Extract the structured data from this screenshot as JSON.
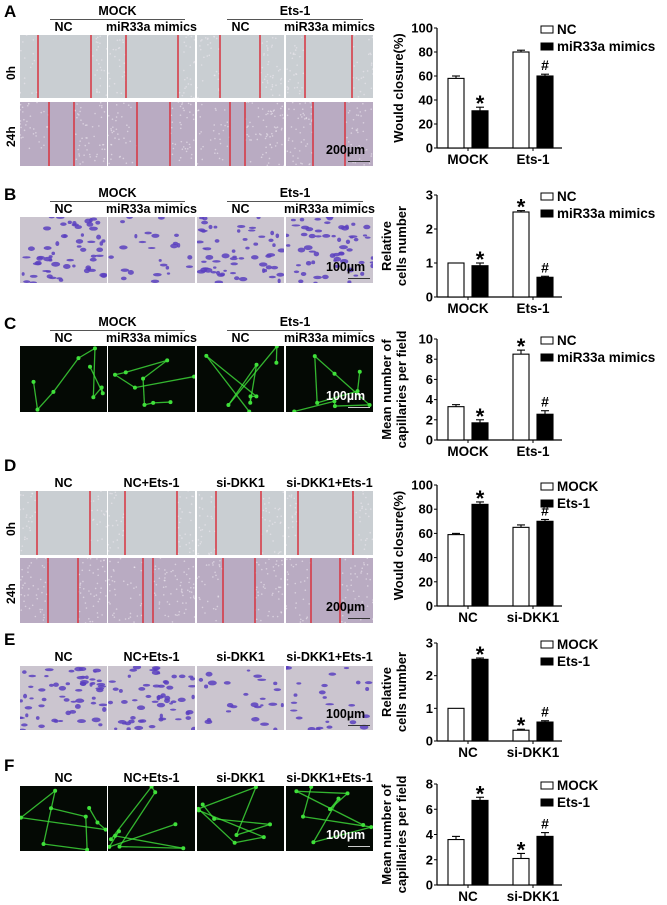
{
  "panels": [
    {
      "letter": "A",
      "groups": [
        "MOCK",
        "Ets-1"
      ],
      "columns": [
        "NC",
        "miR33a mimics",
        "NC",
        "miR33a mimics"
      ],
      "rows": [
        "0h",
        "24h"
      ],
      "scale": "200µm"
    },
    {
      "letter": "B",
      "groups": [
        "MOCK",
        "Ets-1"
      ],
      "columns": [
        "NC",
        "miR33a mimics",
        "NC",
        "miR33a mimics"
      ],
      "rows": [],
      "scale": "100µm"
    },
    {
      "letter": "C",
      "groups": [
        "MOCK",
        "Ets-1"
      ],
      "columns": [
        "NC",
        "miR33a mimics",
        "NC",
        "miR33a mimics"
      ],
      "rows": [],
      "scale": "100µm"
    },
    {
      "letter": "D",
      "groups": [],
      "columns": [
        "NC",
        "NC+Ets-1",
        "si-DKK1",
        "si-DKK1+Ets-1"
      ],
      "rows": [
        "0h",
        "24h"
      ],
      "scale": "200µm"
    },
    {
      "letter": "E",
      "groups": [],
      "columns": [
        "NC",
        "NC+Ets-1",
        "si-DKK1",
        "si-DKK1+Ets-1"
      ],
      "rows": [],
      "scale": "100µm"
    },
    {
      "letter": "F",
      "groups": [],
      "columns": [
        "NC",
        "NC+Ets-1",
        "si-DKK1",
        "si-DKK1+Ets-1"
      ],
      "rows": [],
      "scale": "100µm"
    }
  ],
  "colors": {
    "scratch_0h": "#c9ced2",
    "scratch_24h": "#b9abc2",
    "scratch_line": "#d8333f",
    "transwell_bg": "#cbc5cf",
    "transwell_cells": "#5b3fbf",
    "tube_bg": "#040904",
    "tube_green": "#3fe03a",
    "bar_fill_1": "#ffffff",
    "bar_fill_2": "#000000"
  },
  "chart_data": [
    {
      "panel": "A",
      "type": "bar",
      "ylabel": [
        "Would closure(%)"
      ],
      "ylim": [
        0,
        100
      ],
      "yticks": [
        "0",
        "20",
        "40",
        "60",
        "80",
        "100"
      ],
      "categories": [
        "MOCK",
        "Ets-1"
      ],
      "series": [
        {
          "name": "NC",
          "values": [
            58,
            80
          ],
          "errors": [
            2,
            1.5
          ]
        },
        {
          "name": "miR33a mimics",
          "values": [
            31,
            60
          ],
          "errors": [
            3,
            1.5
          ]
        }
      ],
      "annotations": [
        {
          "category": "MOCK",
          "series": "miR33a mimics",
          "mark": "*"
        },
        {
          "category": "Ets-1",
          "series": "miR33a mimics",
          "mark": "#"
        }
      ]
    },
    {
      "panel": "B",
      "type": "bar",
      "ylabel": [
        "Relative",
        "cells number"
      ],
      "ylim": [
        0,
        3
      ],
      "yticks": [
        "0",
        "1",
        "2",
        "3"
      ],
      "categories": [
        "MOCK",
        "Ets-1"
      ],
      "series": [
        {
          "name": "NC",
          "values": [
            1.0,
            2.5
          ],
          "errors": [
            0,
            0.04
          ]
        },
        {
          "name": "miR33a mimics",
          "values": [
            0.92,
            0.58
          ],
          "errors": [
            0.08,
            0.03
          ]
        }
      ],
      "annotations": [
        {
          "category": "MOCK",
          "series": "miR33a mimics",
          "mark": "*"
        },
        {
          "category": "Ets-1",
          "series": "NC",
          "mark": "*"
        },
        {
          "category": "Ets-1",
          "series": "miR33a mimics",
          "mark": "#"
        }
      ]
    },
    {
      "panel": "C",
      "type": "bar",
      "ylabel": [
        "Mean number of",
        "capillaries per field"
      ],
      "ylim": [
        0,
        10
      ],
      "yticks": [
        "0",
        "2",
        "4",
        "6",
        "8",
        "10"
      ],
      "categories": [
        "MOCK",
        "Ets-1"
      ],
      "series": [
        {
          "name": "NC",
          "values": [
            3.3,
            8.5
          ],
          "errors": [
            0.2,
            0.4
          ]
        },
        {
          "name": "miR33a mimics",
          "values": [
            1.7,
            2.55
          ],
          "errors": [
            0.3,
            0.35
          ]
        }
      ],
      "annotations": [
        {
          "category": "MOCK",
          "series": "miR33a mimics",
          "mark": "*"
        },
        {
          "category": "Ets-1",
          "series": "NC",
          "mark": "*"
        },
        {
          "category": "Ets-1",
          "series": "miR33a mimics",
          "mark": "#"
        }
      ]
    },
    {
      "panel": "D",
      "type": "bar",
      "ylabel": [
        "Would closure(%)"
      ],
      "ylim": [
        0,
        100
      ],
      "yticks": [
        "0",
        "20",
        "40",
        "60",
        "80",
        "100"
      ],
      "categories": [
        "NC",
        "si-DKK1"
      ],
      "series": [
        {
          "name": "MOCK",
          "values": [
            59,
            65
          ],
          "errors": [
            1,
            2
          ]
        },
        {
          "name": "Ets-1",
          "values": [
            84,
            70
          ],
          "errors": [
            2,
            1.5
          ]
        }
      ],
      "annotations": [
        {
          "category": "NC",
          "series": "Ets-1",
          "mark": "*"
        },
        {
          "category": "si-DKK1",
          "series": "Ets-1",
          "mark": "#"
        }
      ]
    },
    {
      "panel": "E",
      "type": "bar",
      "ylabel": [
        "Relative",
        "cells number"
      ],
      "ylim": [
        0,
        3
      ],
      "yticks": [
        "0",
        "1",
        "2",
        "3"
      ],
      "categories": [
        "NC",
        "si-DKK1"
      ],
      "series": [
        {
          "name": "MOCK",
          "values": [
            1.0,
            0.33
          ],
          "errors": [
            0,
            0.03
          ]
        },
        {
          "name": "Ets-1",
          "values": [
            2.5,
            0.58
          ],
          "errors": [
            0.04,
            0.04
          ]
        }
      ],
      "annotations": [
        {
          "category": "NC",
          "series": "Ets-1",
          "mark": "*"
        },
        {
          "category": "si-DKK1",
          "series": "MOCK",
          "mark": "*"
        },
        {
          "category": "si-DKK1",
          "series": "Ets-1",
          "mark": "#"
        }
      ]
    },
    {
      "panel": "F",
      "type": "bar",
      "ylabel": [
        "Mean number of",
        "capillaries per field"
      ],
      "ylim": [
        0,
        8
      ],
      "yticks": [
        "0",
        "2",
        "4",
        "6",
        "8"
      ],
      "categories": [
        "NC",
        "si-DKK1"
      ],
      "series": [
        {
          "name": "MOCK",
          "values": [
            3.6,
            2.1
          ],
          "errors": [
            0.25,
            0.4
          ]
        },
        {
          "name": "Ets-1",
          "values": [
            6.7,
            3.85
          ],
          "errors": [
            0.25,
            0.3
          ]
        }
      ],
      "annotations": [
        {
          "category": "NC",
          "series": "Ets-1",
          "mark": "*"
        },
        {
          "category": "si-DKK1",
          "series": "MOCK",
          "mark": "*"
        },
        {
          "category": "si-DKK1",
          "series": "Ets-1",
          "mark": "#"
        }
      ]
    }
  ]
}
